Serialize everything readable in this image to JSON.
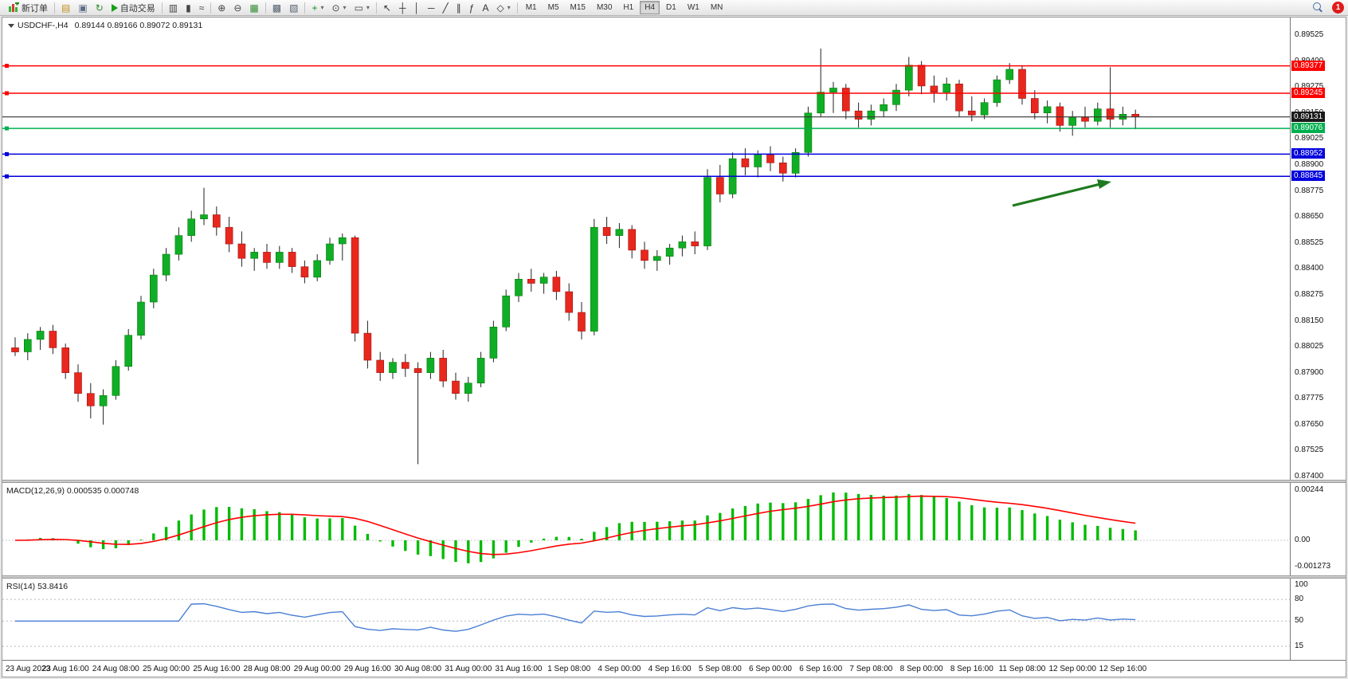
{
  "toolbar": {
    "new_order": "新订单",
    "auto_trading": "自动交易",
    "dropdown_glyph": "▾",
    "notification_count": "1",
    "timeframes": [
      "M1",
      "M5",
      "M15",
      "M30",
      "H1",
      "H4",
      "D1",
      "W1",
      "MN"
    ],
    "active_timeframe": "H4",
    "icon_groups": [
      [
        {
          "name": "profile-icon",
          "glyph": "▤",
          "color": "#c09020"
        },
        {
          "name": "print-icon",
          "glyph": "▣",
          "color": "#5b6e85"
        },
        {
          "name": "refresh-icon",
          "glyph": "↻",
          "color": "#2e8b2e"
        }
      ],
      [
        {
          "name": "bar-chart-icon",
          "glyph": "▥",
          "color": "#444444"
        },
        {
          "name": "candlestick-chart-icon",
          "glyph": "▮",
          "color": "#444444"
        },
        {
          "name": "line-chart-icon",
          "glyph": "≈",
          "color": "#444444"
        }
      ],
      [
        {
          "name": "zoom-in-icon",
          "glyph": "⊕",
          "color": "#444444"
        },
        {
          "name": "zoom-out-icon",
          "glyph": "⊖",
          "color": "#444444"
        },
        {
          "name": "tile-windows-icon",
          "glyph": "▦",
          "color": "#2e8b2e"
        }
      ],
      [
        {
          "name": "arrange-windows-icon",
          "glyph": "▩",
          "color": "#556070"
        },
        {
          "name": "cascade-windows-icon",
          "glyph": "▧",
          "color": "#556070"
        }
      ],
      [
        {
          "name": "new-chart-icon",
          "glyph": "+",
          "color": "#1c8a1c",
          "dropdown": true
        },
        {
          "name": "period-icon",
          "glyph": "⊙",
          "color": "#444444",
          "dropdown": true
        },
        {
          "name": "template-icon",
          "glyph": "▭",
          "color": "#444444",
          "dropdown": true
        }
      ],
      [
        {
          "name": "cursor-icon",
          "glyph": "↖",
          "color": "#333333"
        },
        {
          "name": "crosshair-icon",
          "glyph": "┼",
          "color": "#333333"
        },
        {
          "name": "vertical-line-icon",
          "glyph": "│",
          "color": "#333333"
        },
        {
          "name": "horizontal-line-icon",
          "glyph": "─",
          "color": "#333333"
        },
        {
          "name": "trendline-icon",
          "glyph": "╱",
          "color": "#333333"
        },
        {
          "name": "channel-icon",
          "glyph": "∥",
          "color": "#333333"
        },
        {
          "name": "fibonacci-icon",
          "glyph": "ƒ",
          "color": "#333333"
        },
        {
          "name": "text-icon",
          "glyph": "A",
          "color": "#333333"
        },
        {
          "name": "shapes-icon",
          "glyph": "◇",
          "color": "#333333",
          "dropdown": true
        }
      ]
    ]
  },
  "chart": {
    "title": "USDCHF-,H4",
    "ohlc_text": "0.89144 0.89166 0.89072 0.89131"
  },
  "macd_panel": {
    "label": "MACD(12,26,9) 0.000535 0.000748",
    "axis_labels": [
      "0.00244",
      "0.00",
      "-0.001273"
    ],
    "axis_values": [
      0.00244,
      0,
      -0.001273
    ]
  },
  "rsi_panel": {
    "label": "RSI(14) 53.8416",
    "axis_labels": [
      "100",
      "80",
      "50",
      "15"
    ],
    "axis_values": [
      100,
      80,
      50,
      15
    ],
    "levels": [
      80,
      50,
      15
    ]
  },
  "chart_data": {
    "type": "candlestick",
    "symbol": "USDCHF",
    "timeframe": "H4",
    "ohlc_display": [
      0.89144,
      0.89166,
      0.89072,
      0.89131
    ],
    "price_min": 0.874,
    "price_max": 0.89525,
    "price_axis": [
      "0.89525",
      "0.89400",
      "0.89275",
      "0.89150",
      "0.89025",
      "0.88900",
      "0.88775",
      "0.88650",
      "0.88525",
      "0.88400",
      "0.88275",
      "0.88150",
      "0.88025",
      "0.87900",
      "0.87775",
      "0.87650",
      "0.87525",
      "0.87400"
    ],
    "hlines": [
      {
        "price": 0.89377,
        "color": "#ff0000",
        "label": "0.89377",
        "type": "resistance"
      },
      {
        "price": 0.89245,
        "color": "#ff0000",
        "label": "0.89245",
        "type": "resistance"
      },
      {
        "price": 0.89131,
        "color": "#333333",
        "label": "0.89131",
        "type": "current-price"
      },
      {
        "price": 0.89076,
        "color": "#00b050",
        "label": "0.89076",
        "type": "support"
      },
      {
        "price": 0.88952,
        "color": "#0000dd",
        "label": "0.88952",
        "type": "support"
      },
      {
        "price": 0.88845,
        "color": "#0000dd",
        "label": "0.88845",
        "type": "support"
      }
    ],
    "indicators": {
      "macd": {
        "params": "12,26,9",
        "value": 0.000535,
        "signal_value": 0.000748
      },
      "rsi": {
        "params": "14",
        "value": 53.8416
      }
    },
    "colors": {
      "up": "#0fae26",
      "down": "#e8271d",
      "wick": "#222222",
      "macd_histogram": "#00bb00",
      "macd_signal": "#ff0000",
      "rsi": "#4a7fd4",
      "arrow": "#1e7a1e"
    },
    "time_axis": [
      "23 Aug 2023",
      "23 Aug 16:00",
      "24 Aug 08:00",
      "25 Aug 00:00",
      "25 Aug 16:00",
      "28 Aug 08:00",
      "29 Aug 00:00",
      "29 Aug 16:00",
      "30 Aug 08:00",
      "31 Aug 00:00",
      "31 Aug 16:00",
      "1 Sep 08:00",
      "4 Sep 00:00",
      "4 Sep 16:00",
      "5 Sep 08:00",
      "6 Sep 00:00",
      "6 Sep 16:00",
      "7 Sep 08:00",
      "8 Sep 00:00",
      "8 Sep 16:00",
      "11 Sep 08:00",
      "12 Sep 00:00",
      "12 Sep 16:00"
    ],
    "candles": [
      [
        0.8802,
        0.8807,
        0.8798,
        0.88
      ],
      [
        0.88,
        0.8809,
        0.8796,
        0.8806
      ],
      [
        0.8806,
        0.8812,
        0.8801,
        0.881
      ],
      [
        0.881,
        0.8813,
        0.8799,
        0.8802
      ],
      [
        0.8802,
        0.8804,
        0.8787,
        0.879
      ],
      [
        0.879,
        0.8794,
        0.8776,
        0.878
      ],
      [
        0.878,
        0.8785,
        0.8768,
        0.8774
      ],
      [
        0.8774,
        0.8782,
        0.8765,
        0.8779
      ],
      [
        0.8779,
        0.8796,
        0.8777,
        0.8793
      ],
      [
        0.8793,
        0.8811,
        0.8791,
        0.8808
      ],
      [
        0.8808,
        0.8827,
        0.8806,
        0.8824
      ],
      [
        0.8824,
        0.884,
        0.8821,
        0.8837
      ],
      [
        0.8837,
        0.885,
        0.8834,
        0.8847
      ],
      [
        0.8847,
        0.886,
        0.8844,
        0.8856
      ],
      [
        0.8856,
        0.8868,
        0.8853,
        0.8864
      ],
      [
        0.8864,
        0.8879,
        0.8861,
        0.8866
      ],
      [
        0.8866,
        0.887,
        0.8856,
        0.886
      ],
      [
        0.886,
        0.8865,
        0.8848,
        0.8852
      ],
      [
        0.8852,
        0.8858,
        0.8841,
        0.8845
      ],
      [
        0.8845,
        0.885,
        0.8839,
        0.8848
      ],
      [
        0.8848,
        0.8852,
        0.884,
        0.8843
      ],
      [
        0.8843,
        0.8851,
        0.884,
        0.8848
      ],
      [
        0.8848,
        0.885,
        0.8838,
        0.8841
      ],
      [
        0.8841,
        0.8844,
        0.8833,
        0.8836
      ],
      [
        0.8836,
        0.8847,
        0.8834,
        0.8844
      ],
      [
        0.8844,
        0.8855,
        0.8842,
        0.8852
      ],
      [
        0.8852,
        0.8857,
        0.8844,
        0.8855
      ],
      [
        0.8855,
        0.8856,
        0.8805,
        0.8809
      ],
      [
        0.8809,
        0.8815,
        0.8792,
        0.8796
      ],
      [
        0.8796,
        0.88,
        0.8786,
        0.879
      ],
      [
        0.879,
        0.8797,
        0.8787,
        0.8795
      ],
      [
        0.8795,
        0.8799,
        0.8788,
        0.8792
      ],
      [
        0.8792,
        0.8795,
        0.8746,
        0.879
      ],
      [
        0.879,
        0.88,
        0.8787,
        0.8797
      ],
      [
        0.8797,
        0.8801,
        0.8783,
        0.8786
      ],
      [
        0.8786,
        0.879,
        0.8777,
        0.878
      ],
      [
        0.878,
        0.8788,
        0.8776,
        0.8785
      ],
      [
        0.8785,
        0.88,
        0.8783,
        0.8797
      ],
      [
        0.8797,
        0.8815,
        0.8795,
        0.8812
      ],
      [
        0.8812,
        0.883,
        0.881,
        0.8827
      ],
      [
        0.8827,
        0.8838,
        0.8824,
        0.8835
      ],
      [
        0.8835,
        0.884,
        0.8829,
        0.8833
      ],
      [
        0.8833,
        0.8838,
        0.8828,
        0.8836
      ],
      [
        0.8836,
        0.8839,
        0.8825,
        0.8829
      ],
      [
        0.8829,
        0.8833,
        0.8815,
        0.8819
      ],
      [
        0.8819,
        0.8824,
        0.8806,
        0.881
      ],
      [
        0.881,
        0.8864,
        0.8808,
        0.886
      ],
      [
        0.886,
        0.8865,
        0.8852,
        0.8856
      ],
      [
        0.8856,
        0.8862,
        0.885,
        0.8859
      ],
      [
        0.8859,
        0.8861,
        0.8845,
        0.8849
      ],
      [
        0.8849,
        0.8853,
        0.884,
        0.8844
      ],
      [
        0.8844,
        0.8849,
        0.8839,
        0.8846
      ],
      [
        0.8846,
        0.8852,
        0.8842,
        0.885
      ],
      [
        0.885,
        0.8856,
        0.8846,
        0.8853
      ],
      [
        0.8853,
        0.8858,
        0.8847,
        0.8851
      ],
      [
        0.8851,
        0.8888,
        0.8849,
        0.8884
      ],
      [
        0.8884,
        0.889,
        0.8872,
        0.8876
      ],
      [
        0.8876,
        0.8896,
        0.8874,
        0.8893
      ],
      [
        0.8893,
        0.8898,
        0.8885,
        0.8889
      ],
      [
        0.8889,
        0.8897,
        0.8884,
        0.8895
      ],
      [
        0.8895,
        0.8899,
        0.8887,
        0.8891
      ],
      [
        0.8891,
        0.8894,
        0.8882,
        0.8886
      ],
      [
        0.8886,
        0.8898,
        0.8884,
        0.8896
      ],
      [
        0.8896,
        0.8918,
        0.8894,
        0.8915
      ],
      [
        0.8915,
        0.8946,
        0.8913,
        0.8925
      ],
      [
        0.8925,
        0.893,
        0.8915,
        0.8927
      ],
      [
        0.8927,
        0.8929,
        0.8912,
        0.8916
      ],
      [
        0.8916,
        0.892,
        0.8908,
        0.8912
      ],
      [
        0.8912,
        0.8919,
        0.8909,
        0.8916
      ],
      [
        0.8916,
        0.8922,
        0.8913,
        0.8919
      ],
      [
        0.8919,
        0.8929,
        0.8916,
        0.8926
      ],
      [
        0.8926,
        0.8942,
        0.8923,
        0.8938
      ],
      [
        0.8938,
        0.894,
        0.8924,
        0.8928
      ],
      [
        0.8928,
        0.8933,
        0.892,
        0.8925
      ],
      [
        0.8925,
        0.8932,
        0.8921,
        0.8929
      ],
      [
        0.8929,
        0.8931,
        0.8913,
        0.8916
      ],
      [
        0.8916,
        0.8923,
        0.8911,
        0.8914
      ],
      [
        0.8914,
        0.8922,
        0.8912,
        0.892
      ],
      [
        0.892,
        0.8933,
        0.8918,
        0.8931
      ],
      [
        0.8931,
        0.8939,
        0.8929,
        0.8936
      ],
      [
        0.8936,
        0.8938,
        0.8919,
        0.8922
      ],
      [
        0.8922,
        0.8926,
        0.8912,
        0.8915
      ],
      [
        0.8915,
        0.8921,
        0.891,
        0.8918
      ],
      [
        0.8918,
        0.892,
        0.8906,
        0.8909
      ],
      [
        0.8909,
        0.8916,
        0.8904,
        0.8913
      ],
      [
        0.8913,
        0.8918,
        0.8908,
        0.8911
      ],
      [
        0.8911,
        0.892,
        0.8909,
        0.8917
      ],
      [
        0.8917,
        0.8937,
        0.8908,
        0.8912
      ],
      [
        0.8912,
        0.8918,
        0.8909,
        0.89144
      ],
      [
        0.89144,
        0.89166,
        0.89072,
        0.89131
      ]
    ]
  }
}
